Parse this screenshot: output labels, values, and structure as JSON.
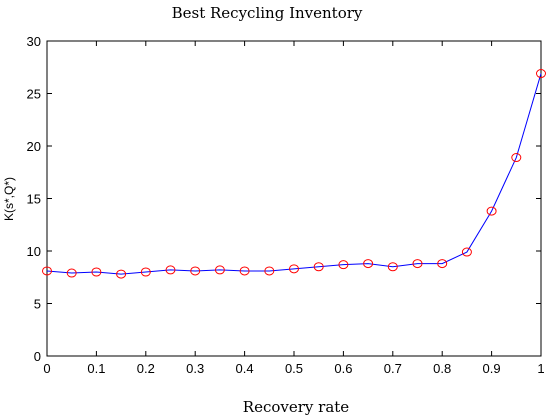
{
  "chart_data": {
    "type": "line",
    "title": "Best Recycling Inventory",
    "xlabel": "Recovery rate",
    "ylabel": "K(s*,Q*)",
    "xlim": [
      0,
      1
    ],
    "ylim": [
      0,
      30
    ],
    "xticks": [
      "0",
      "0.1",
      "0.2",
      "0.3",
      "0.4",
      "0.5",
      "0.6",
      "0.7",
      "0.8",
      "0.9",
      "1"
    ],
    "yticks": [
      "0",
      "5",
      "10",
      "15",
      "20",
      "25",
      "30"
    ],
    "grid": false,
    "series": [
      {
        "line_color": "#0000ff",
        "marker_color": "#ff0000",
        "marker": "circle",
        "x": [
          0,
          0.05,
          0.1,
          0.15,
          0.2,
          0.25,
          0.3,
          0.35,
          0.4,
          0.45,
          0.5,
          0.55,
          0.6,
          0.65,
          0.7,
          0.75,
          0.8,
          0.85,
          0.9,
          0.95,
          1.0
        ],
        "y": [
          8.1,
          7.9,
          8.0,
          7.8,
          8.0,
          8.2,
          8.1,
          8.2,
          8.1,
          8.1,
          8.3,
          8.5,
          8.7,
          8.8,
          8.5,
          8.8,
          8.8,
          9.9,
          13.8,
          18.9,
          26.9
        ]
      }
    ]
  }
}
